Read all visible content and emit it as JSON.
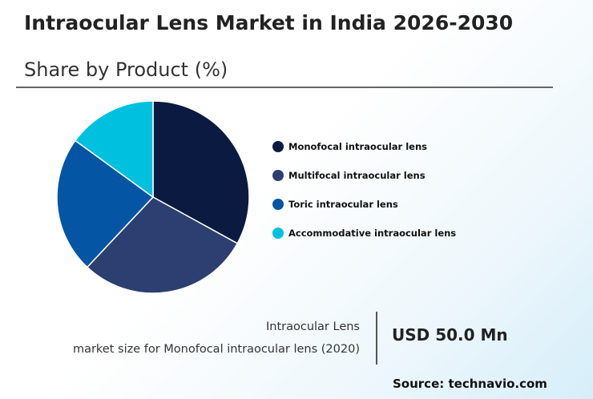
{
  "header": {
    "title": "Intraocular Lens Market in India 2026-2030",
    "subtitle": "Share by Product (%)"
  },
  "chart_data": {
    "type": "pie",
    "categories": [
      "Monofocal intraocular lens",
      "Multifocal intraocular lens",
      "Toric intraocular lens",
      "Accommodative intraocular lens"
    ],
    "values": [
      33,
      29,
      23,
      15
    ],
    "colors": [
      "#0b1a40",
      "#2c3f70",
      "#0456a4",
      "#00c0e0"
    ],
    "legend_position": "right"
  },
  "market_size": {
    "label_line1": "Intraocular Lens",
    "label_line2": "market size for Monofocal intraocular lens (2020)",
    "value": "USD 50.0 Mn"
  },
  "source": "Source: technavio.com"
}
